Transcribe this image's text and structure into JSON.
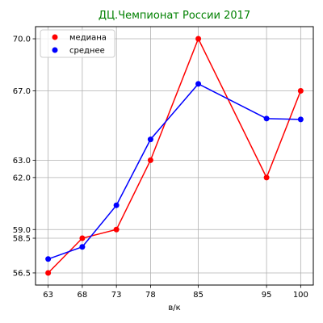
{
  "chart_data": {
    "type": "line",
    "title": "ДЦ.Чемпионат России 2017",
    "title_color": "#008000",
    "xlabel": "в/к",
    "ylabel": "",
    "x": [
      63,
      68,
      73,
      78,
      85,
      95,
      100
    ],
    "x_ticks": [
      "63",
      "68",
      "73",
      "78",
      "85",
      "95",
      "100"
    ],
    "y_ticks": [
      "56.5",
      "58.5",
      "59.0",
      "62.0",
      "63.0",
      "67.0",
      "70.0"
    ],
    "xlim": [
      61.15,
      101.85
    ],
    "ylim": [
      55.8,
      70.7
    ],
    "grid": true,
    "legend_position": "top-left",
    "series": [
      {
        "name": "медиана",
        "color": "#ff0000",
        "values": [
          56.5,
          58.5,
          59.0,
          63.0,
          70.0,
          62.0,
          67.0
        ]
      },
      {
        "name": "среднее",
        "color": "#0000ff",
        "values": [
          57.3,
          58.0,
          60.4,
          64.2,
          67.4,
          65.4,
          65.35
        ]
      }
    ]
  }
}
